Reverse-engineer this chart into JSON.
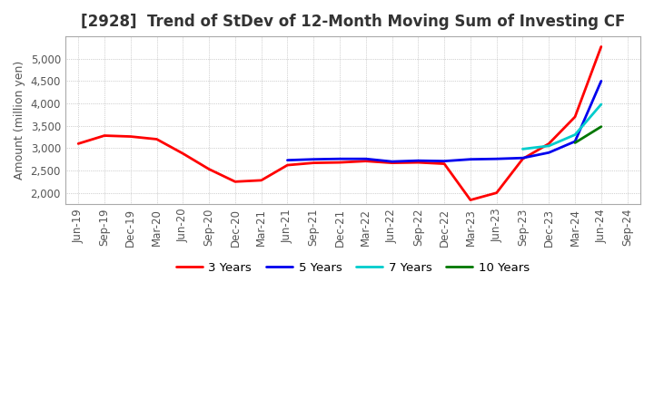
{
  "title": "[2928]  Trend of StDev of 12-Month Moving Sum of Investing CF",
  "ylabel": "Amount (million yen)",
  "ylim": [
    1750,
    5500
  ],
  "yticks": [
    2000,
    2500,
    3000,
    3500,
    4000,
    4500,
    5000
  ],
  "x_labels": [
    "Jun-19",
    "Sep-19",
    "Dec-19",
    "Mar-20",
    "Jun-20",
    "Sep-20",
    "Dec-20",
    "Mar-21",
    "Jun-21",
    "Sep-21",
    "Dec-21",
    "Mar-22",
    "Jun-22",
    "Sep-22",
    "Dec-22",
    "Mar-23",
    "Jun-23",
    "Sep-23",
    "Dec-23",
    "Mar-24",
    "Jun-24",
    "Sep-24"
  ],
  "background_color": "#ffffff",
  "grid_color": "#aaaaaa",
  "title_fontsize": 12,
  "label_fontsize": 9,
  "tick_fontsize": 8.5,
  "series": {
    "3 Years": {
      "color": "#ff0000",
      "xi": [
        0,
        1,
        2,
        3,
        4,
        5,
        6,
        7,
        8,
        9,
        10,
        11,
        12,
        13,
        14,
        15,
        16,
        17,
        18,
        19,
        20
      ],
      "y": [
        3100,
        3280,
        3260,
        3200,
        2880,
        2530,
        2250,
        2280,
        2620,
        2670,
        2680,
        2710,
        2670,
        2680,
        2650,
        1840,
        2000,
        2760,
        3100,
        3700,
        5270
      ]
    },
    "5 Years": {
      "color": "#0000ee",
      "xi": [
        8,
        9,
        10,
        11,
        12,
        13,
        14,
        15,
        16,
        17,
        18,
        19,
        20
      ],
      "y": [
        2730,
        2750,
        2760,
        2760,
        2700,
        2720,
        2710,
        2750,
        2760,
        2780,
        2900,
        3150,
        4500
      ]
    },
    "7 Years": {
      "color": "#00cccc",
      "xi": [
        17,
        18,
        19,
        20
      ],
      "y": [
        2980,
        3050,
        3300,
        3980
      ]
    },
    "10 Years": {
      "color": "#007700",
      "xi": [
        19,
        20
      ],
      "y": [
        3120,
        3480
      ]
    }
  },
  "legend_order": [
    "3 Years",
    "5 Years",
    "7 Years",
    "10 Years"
  ]
}
